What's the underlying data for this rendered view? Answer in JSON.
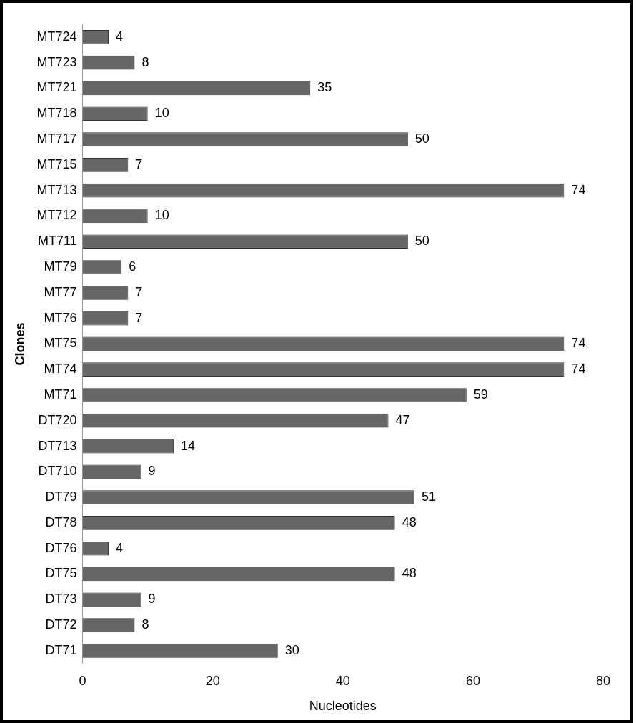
{
  "chart_data": {
    "type": "bar",
    "orientation": "horizontal",
    "xlabel": "Nucleotides",
    "ylabel": "Clones",
    "categories": [
      "MT724",
      "MT723",
      "MT721",
      "MT718",
      "MT717",
      "MT715",
      "MT713",
      "MT712",
      "MT711",
      "MT79",
      "MT77",
      "MT76",
      "MT75",
      "MT74",
      "MT71",
      "DT720",
      "DT713",
      "DT710",
      "DT79",
      "DT78",
      "DT76",
      "DT75",
      "DT73",
      "DT72",
      "DT71"
    ],
    "values": [
      4,
      8,
      35,
      10,
      50,
      7,
      74,
      10,
      50,
      6,
      7,
      7,
      74,
      74,
      59,
      47,
      14,
      9,
      51,
      48,
      4,
      48,
      9,
      8,
      30
    ],
    "color": "#666666",
    "xlim": [
      0,
      80
    ],
    "xticks": [
      0,
      20,
      40,
      60,
      80
    ],
    "grid": false,
    "legend": false,
    "data_labels": true
  }
}
